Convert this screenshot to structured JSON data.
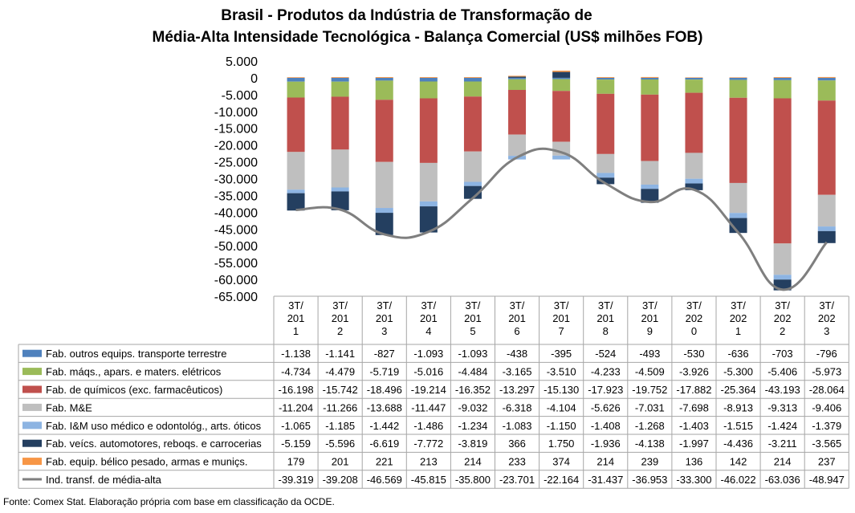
{
  "chart_data": {
    "type": "bar",
    "stacked": true,
    "title": [
      "Brasil - Produtos da Indústria de Transformação de",
      "Média-Alta Intensidade Tecnológica - Balança Comercial (US$ milhões FOB)"
    ],
    "categories": [
      "3T/ 201 1",
      "3T/ 201 2",
      "3T/ 201 3",
      "3T/ 201 4",
      "3T/ 201 5",
      "3T/ 201 6",
      "3T/ 201 7",
      "3T/ 201 8",
      "3T/ 201 9",
      "3T/ 202 0",
      "3T/ 202 1",
      "3T/ 202 2",
      "3T/ 202 3"
    ],
    "category_lines": [
      [
        "3T/",
        "201",
        "1"
      ],
      [
        "3T/",
        "201",
        "2"
      ],
      [
        "3T/",
        "201",
        "3"
      ],
      [
        "3T/",
        "201",
        "4"
      ],
      [
        "3T/",
        "201",
        "5"
      ],
      [
        "3T/",
        "201",
        "6"
      ],
      [
        "3T/",
        "201",
        "7"
      ],
      [
        "3T/",
        "201",
        "8"
      ],
      [
        "3T/",
        "201",
        "9"
      ],
      [
        "3T/",
        "202",
        "0"
      ],
      [
        "3T/",
        "202",
        "1"
      ],
      [
        "3T/",
        "202",
        "2"
      ],
      [
        "3T/",
        "202",
        "3"
      ]
    ],
    "ylim": [
      -65000,
      5000
    ],
    "yticks": [
      5000,
      0,
      -5000,
      -10000,
      -15000,
      -20000,
      -25000,
      -30000,
      -35000,
      -40000,
      -45000,
      -50000,
      -55000,
      -60000,
      -65000
    ],
    "ytick_labels": [
      "5.000",
      "0",
      "-5.000",
      "-10.000",
      "-15.000",
      "-20.000",
      "-25.000",
      "-30.000",
      "-35.000",
      "-40.000",
      "-45.000",
      "-50.000",
      "-55.000",
      "-60.000",
      "-65.000"
    ],
    "series": [
      {
        "name": "Fab. outros equips. transporte terrestre",
        "color": "#4f81bd",
        "kind": "bar",
        "values": [
          -1138,
          -1141,
          -827,
          -1093,
          -1093,
          -438,
          -395,
          -524,
          -493,
          -530,
          -636,
          -703,
          -796
        ],
        "labels": [
          "-1.138",
          "-1.141",
          "-827",
          "-1.093",
          "-1.093",
          "-438",
          "-395",
          "-524",
          "-493",
          "-530",
          "-636",
          "-703",
          "-796"
        ]
      },
      {
        "name": "Fab. máqs., apars. e maters. elétricos",
        "color": "#9bbb59",
        "kind": "bar",
        "values": [
          -4734,
          -4479,
          -5719,
          -5016,
          -4484,
          -3165,
          -3510,
          -4233,
          -4509,
          -3926,
          -5300,
          -5406,
          -5973
        ],
        "labels": [
          "-4.734",
          "-4.479",
          "-5.719",
          "-5.016",
          "-4.484",
          "-3.165",
          "-3.510",
          "-4.233",
          "-4.509",
          "-3.926",
          "-5.300",
          "-5.406",
          "-5.973"
        ]
      },
      {
        "name": "Fab. de químicos (exc. farmacêuticos)",
        "color": "#c0504d",
        "kind": "bar",
        "values": [
          -16198,
          -15742,
          -18496,
          -19214,
          -16352,
          -13297,
          -15130,
          -17923,
          -19752,
          -17882,
          -25364,
          -43193,
          -28064
        ],
        "labels": [
          "-16.198",
          "-15.742",
          "-18.496",
          "-19.214",
          "-16.352",
          "-13.297",
          "-15.130",
          "-17.923",
          "-19.752",
          "-17.882",
          "-25.364",
          "-43.193",
          "-28.064"
        ]
      },
      {
        "name": "Fab. M&E",
        "color": "#bfbfbf",
        "kind": "bar",
        "values": [
          -11204,
          -11266,
          -13688,
          -11447,
          -9032,
          -6318,
          -4104,
          -5626,
          -7031,
          -7698,
          -8913,
          -9313,
          -9406
        ],
        "labels": [
          "-11.204",
          "-11.266",
          "-13.688",
          "-11.447",
          "-9.032",
          "-6.318",
          "-4.104",
          "-5.626",
          "-7.031",
          "-7.698",
          "-8.913",
          "-9.313",
          "-9.406"
        ]
      },
      {
        "name": "Fab. I&M uso médico e odontológ., arts. óticos",
        "color": "#8db4e2",
        "kind": "bar",
        "values": [
          -1065,
          -1185,
          -1442,
          -1486,
          -1234,
          -1083,
          -1150,
          -1408,
          -1268,
          -1403,
          -1515,
          -1424,
          -1379
        ],
        "labels": [
          "-1.065",
          "-1.185",
          "-1.442",
          "-1.486",
          "-1.234",
          "-1.083",
          "-1.150",
          "-1.408",
          "-1.268",
          "-1.403",
          "-1.515",
          "-1.424",
          "-1.379"
        ]
      },
      {
        "name": "Fab. veícs. automotores, reboqs. e carrocerias",
        "color": "#243f60",
        "kind": "bar",
        "values": [
          -5159,
          -5596,
          -6619,
          -7772,
          -3819,
          366,
          1750,
          -1936,
          -4138,
          -1997,
          -4436,
          -3211,
          -3565
        ],
        "labels": [
          "-5.159",
          "-5.596",
          "-6.619",
          "-7.772",
          "-3.819",
          "366",
          "1.750",
          "-1.936",
          "-4.138",
          "-1.997",
          "-4.436",
          "-3.211",
          "-3.565"
        ]
      },
      {
        "name": "Fab. equip. bélico pesado, armas e munições.",
        "color": "#f79646",
        "kind": "bar",
        "values": [
          179,
          201,
          221,
          213,
          214,
          233,
          374,
          214,
          239,
          136,
          142,
          214,
          237
        ],
        "labels": [
          "179",
          "201",
          "221",
          "213",
          "214",
          "233",
          "374",
          "214",
          "239",
          "136",
          "142",
          "214",
          "237"
        ]
      },
      {
        "name": "Ind. transf. de média-alta",
        "color": "#7f7f7f",
        "kind": "line",
        "values": [
          -39319,
          -39208,
          -46569,
          -45815,
          -35800,
          -23701,
          -22164,
          -31437,
          -36953,
          -33300,
          -46022,
          -63036,
          -48947
        ],
        "labels": [
          "-39.319",
          "-39.208",
          "-46.569",
          "-45.815",
          "-35.800",
          "-23.701",
          "-22.164",
          "-31.437",
          "-36.953",
          "-33.300",
          "-46.022",
          "-63.036",
          "-48.947"
        ]
      }
    ],
    "series_display_names": [
      "Fab. outros equips. transporte terrestre",
      "Fab. máqs., apars. e maters. elétricos",
      "Fab. de químicos (exc. farmacêuticos)",
      "Fab. M&E",
      "Fab. I&M uso médico e odontológ., arts. óticos",
      "Fab. veícs. automotores, reboqs. e carrocerias",
      "Fab. equip. bélico pesado, armas e muniçs.",
      "Ind. transf. de média-alta"
    ],
    "legend": "data-table"
  },
  "source": "Fonte:  Comex Stat. Elaboração própria com base em classificação da OCDE."
}
